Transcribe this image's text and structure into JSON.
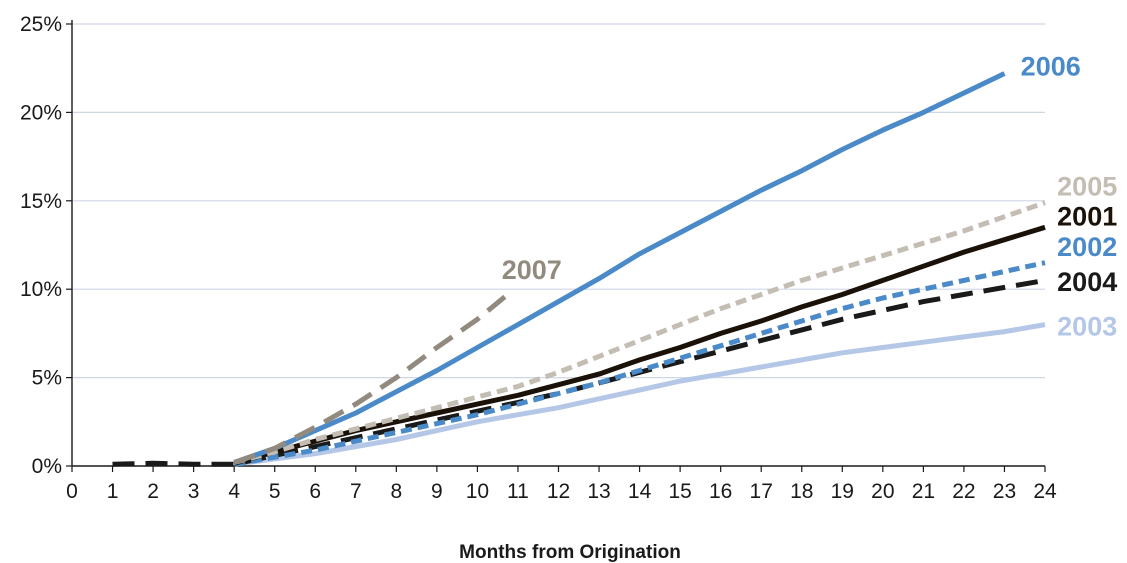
{
  "chart_data": {
    "type": "line",
    "title": "",
    "xlabel": "Months from Origination",
    "ylabel": "",
    "xlim": [
      0,
      24
    ],
    "ylim": [
      0,
      25
    ],
    "x_ticks": [
      "0",
      "1",
      "2",
      "3",
      "4",
      "5",
      "6",
      "7",
      "8",
      "9",
      "10",
      "11",
      "12",
      "13",
      "14",
      "15",
      "16",
      "17",
      "18",
      "19",
      "20",
      "21",
      "22",
      "23",
      "24"
    ],
    "y_ticks": [
      "0%",
      "5%",
      "10%",
      "15%",
      "20%",
      "25%"
    ],
    "y_tick_values": [
      0,
      5,
      10,
      15,
      20,
      25
    ],
    "grid": "horizontal",
    "legend": "inline labels at line ends",
    "series": [
      {
        "name": "2003",
        "color": "#b4c7e7",
        "dash": "solid",
        "label_at": [
          24.3,
          7.9
        ],
        "points": [
          [
            4,
            0.1
          ],
          [
            5,
            0.4
          ],
          [
            6,
            0.7
          ],
          [
            7,
            1.1
          ],
          [
            8,
            1.5
          ],
          [
            9,
            2.0
          ],
          [
            10,
            2.5
          ],
          [
            11,
            2.9
          ],
          [
            12,
            3.3
          ],
          [
            13,
            3.8
          ],
          [
            14,
            4.3
          ],
          [
            15,
            4.8
          ],
          [
            16,
            5.2
          ],
          [
            17,
            5.6
          ],
          [
            18,
            6.0
          ],
          [
            19,
            6.4
          ],
          [
            20,
            6.7
          ],
          [
            21,
            7.0
          ],
          [
            22,
            7.3
          ],
          [
            23,
            7.6
          ],
          [
            24,
            8.0
          ]
        ]
      },
      {
        "name": "2004",
        "color": "#1a1a1a",
        "dash": "longdash",
        "label_at": [
          24.3,
          10.4
        ],
        "points": [
          [
            1,
            0.1
          ],
          [
            2,
            0.15
          ],
          [
            3,
            0.1
          ],
          [
            4,
            0.1
          ],
          [
            5,
            0.6
          ],
          [
            6,
            1.1
          ],
          [
            7,
            1.6
          ],
          [
            8,
            2.1
          ],
          [
            9,
            2.6
          ],
          [
            10,
            3.1
          ],
          [
            11,
            3.6
          ],
          [
            12,
            4.1
          ],
          [
            13,
            4.7
          ],
          [
            14,
            5.3
          ],
          [
            15,
            5.9
          ],
          [
            16,
            6.5
          ],
          [
            17,
            7.1
          ],
          [
            18,
            7.7
          ],
          [
            19,
            8.3
          ],
          [
            20,
            8.8
          ],
          [
            21,
            9.3
          ],
          [
            22,
            9.7
          ],
          [
            23,
            10.1
          ],
          [
            24,
            10.5
          ]
        ]
      },
      {
        "name": "2002",
        "color": "#4a8ac9",
        "dash": "shortdash",
        "label_at": [
          24.3,
          12.4
        ],
        "points": [
          [
            4,
            0.1
          ],
          [
            5,
            0.5
          ],
          [
            6,
            0.9
          ],
          [
            7,
            1.4
          ],
          [
            8,
            1.9
          ],
          [
            9,
            2.4
          ],
          [
            10,
            2.9
          ],
          [
            11,
            3.5
          ],
          [
            12,
            4.1
          ],
          [
            13,
            4.7
          ],
          [
            14,
            5.4
          ],
          [
            15,
            6.1
          ],
          [
            16,
            6.8
          ],
          [
            17,
            7.5
          ],
          [
            18,
            8.2
          ],
          [
            19,
            8.9
          ],
          [
            20,
            9.5
          ],
          [
            21,
            10.0
          ],
          [
            22,
            10.5
          ],
          [
            23,
            11.0
          ],
          [
            24,
            11.5
          ]
        ]
      },
      {
        "name": "2001",
        "color": "#1a1108",
        "dash": "solid",
        "label_at": [
          24.3,
          14.1
        ],
        "points": [
          [
            4,
            0.15
          ],
          [
            5,
            0.8
          ],
          [
            6,
            1.4
          ],
          [
            7,
            2.0
          ],
          [
            8,
            2.5
          ],
          [
            9,
            3.0
          ],
          [
            10,
            3.5
          ],
          [
            11,
            4.0
          ],
          [
            12,
            4.6
          ],
          [
            13,
            5.2
          ],
          [
            14,
            6.0
          ],
          [
            15,
            6.7
          ],
          [
            16,
            7.5
          ],
          [
            17,
            8.2
          ],
          [
            18,
            9.0
          ],
          [
            19,
            9.7
          ],
          [
            20,
            10.5
          ],
          [
            21,
            11.3
          ],
          [
            22,
            12.1
          ],
          [
            23,
            12.8
          ],
          [
            24,
            13.5
          ]
        ]
      },
      {
        "name": "2005",
        "color": "#c3bdb3",
        "dash": "shortdash",
        "label_at": [
          24.3,
          15.8
        ],
        "points": [
          [
            4,
            0.2
          ],
          [
            5,
            0.8
          ],
          [
            6,
            1.5
          ],
          [
            7,
            2.1
          ],
          [
            8,
            2.7
          ],
          [
            9,
            3.3
          ],
          [
            10,
            3.9
          ],
          [
            11,
            4.5
          ],
          [
            12,
            5.3
          ],
          [
            13,
            6.2
          ],
          [
            14,
            7.1
          ],
          [
            15,
            8.0
          ],
          [
            16,
            8.9
          ],
          [
            17,
            9.7
          ],
          [
            18,
            10.5
          ],
          [
            19,
            11.2
          ],
          [
            20,
            11.9
          ],
          [
            21,
            12.6
          ],
          [
            22,
            13.3
          ],
          [
            23,
            14.1
          ],
          [
            24,
            14.9
          ]
        ]
      },
      {
        "name": "2006",
        "color": "#4a8ac9",
        "dash": "solid",
        "label_at": [
          23.4,
          22.6
        ],
        "points": [
          [
            4,
            0.2
          ],
          [
            5,
            1.0
          ],
          [
            6,
            2.0
          ],
          [
            7,
            3.0
          ],
          [
            8,
            4.2
          ],
          [
            9,
            5.4
          ],
          [
            10,
            6.7
          ],
          [
            11,
            8.0
          ],
          [
            12,
            9.3
          ],
          [
            13,
            10.6
          ],
          [
            14,
            12.0
          ],
          [
            15,
            13.2
          ],
          [
            16,
            14.4
          ],
          [
            17,
            15.6
          ],
          [
            18,
            16.7
          ],
          [
            19,
            17.9
          ],
          [
            20,
            19.0
          ],
          [
            21,
            20.0
          ],
          [
            22,
            21.1
          ],
          [
            23,
            22.2
          ]
        ]
      },
      {
        "name": "2007",
        "color": "#928a7f",
        "dash": "longdash",
        "label_at": [
          10.6,
          11.1
        ],
        "points": [
          [
            4,
            0.2
          ],
          [
            5,
            1.0
          ],
          [
            6,
            2.2
          ],
          [
            7,
            3.5
          ],
          [
            8,
            5.0
          ],
          [
            9,
            6.7
          ],
          [
            10,
            8.3
          ],
          [
            10.8,
            9.8
          ]
        ]
      }
    ]
  }
}
